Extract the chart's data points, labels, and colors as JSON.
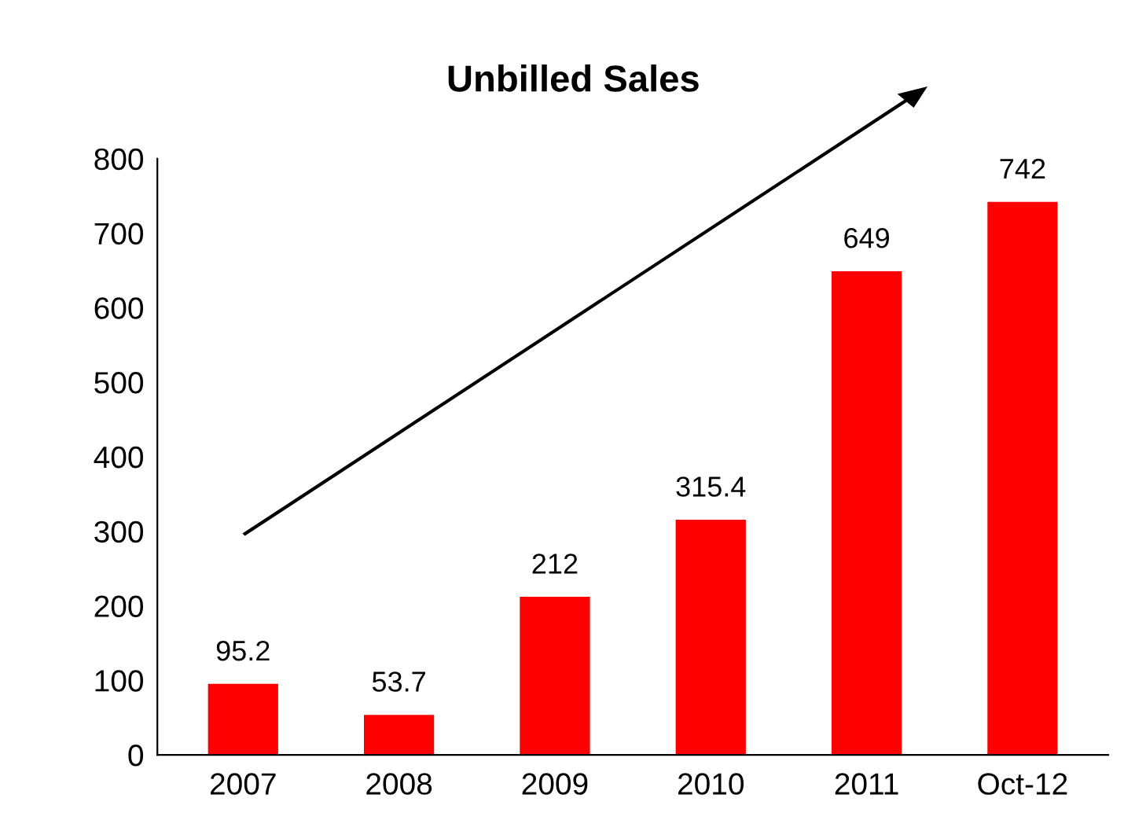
{
  "chart_data": {
    "type": "bar",
    "title": "Unbilled Sales",
    "categories": [
      "2007",
      "2008",
      "2009",
      "2010",
      "2011",
      "Oct-12"
    ],
    "values": [
      95.2,
      53.7,
      212,
      315.4,
      649,
      742
    ],
    "color": "#ff0000",
    "ylim": [
      0,
      800
    ],
    "yticks": [
      0,
      100,
      200,
      300,
      400,
      500,
      600,
      700,
      800
    ],
    "data_labels": true,
    "grid": false,
    "legend": false
  }
}
